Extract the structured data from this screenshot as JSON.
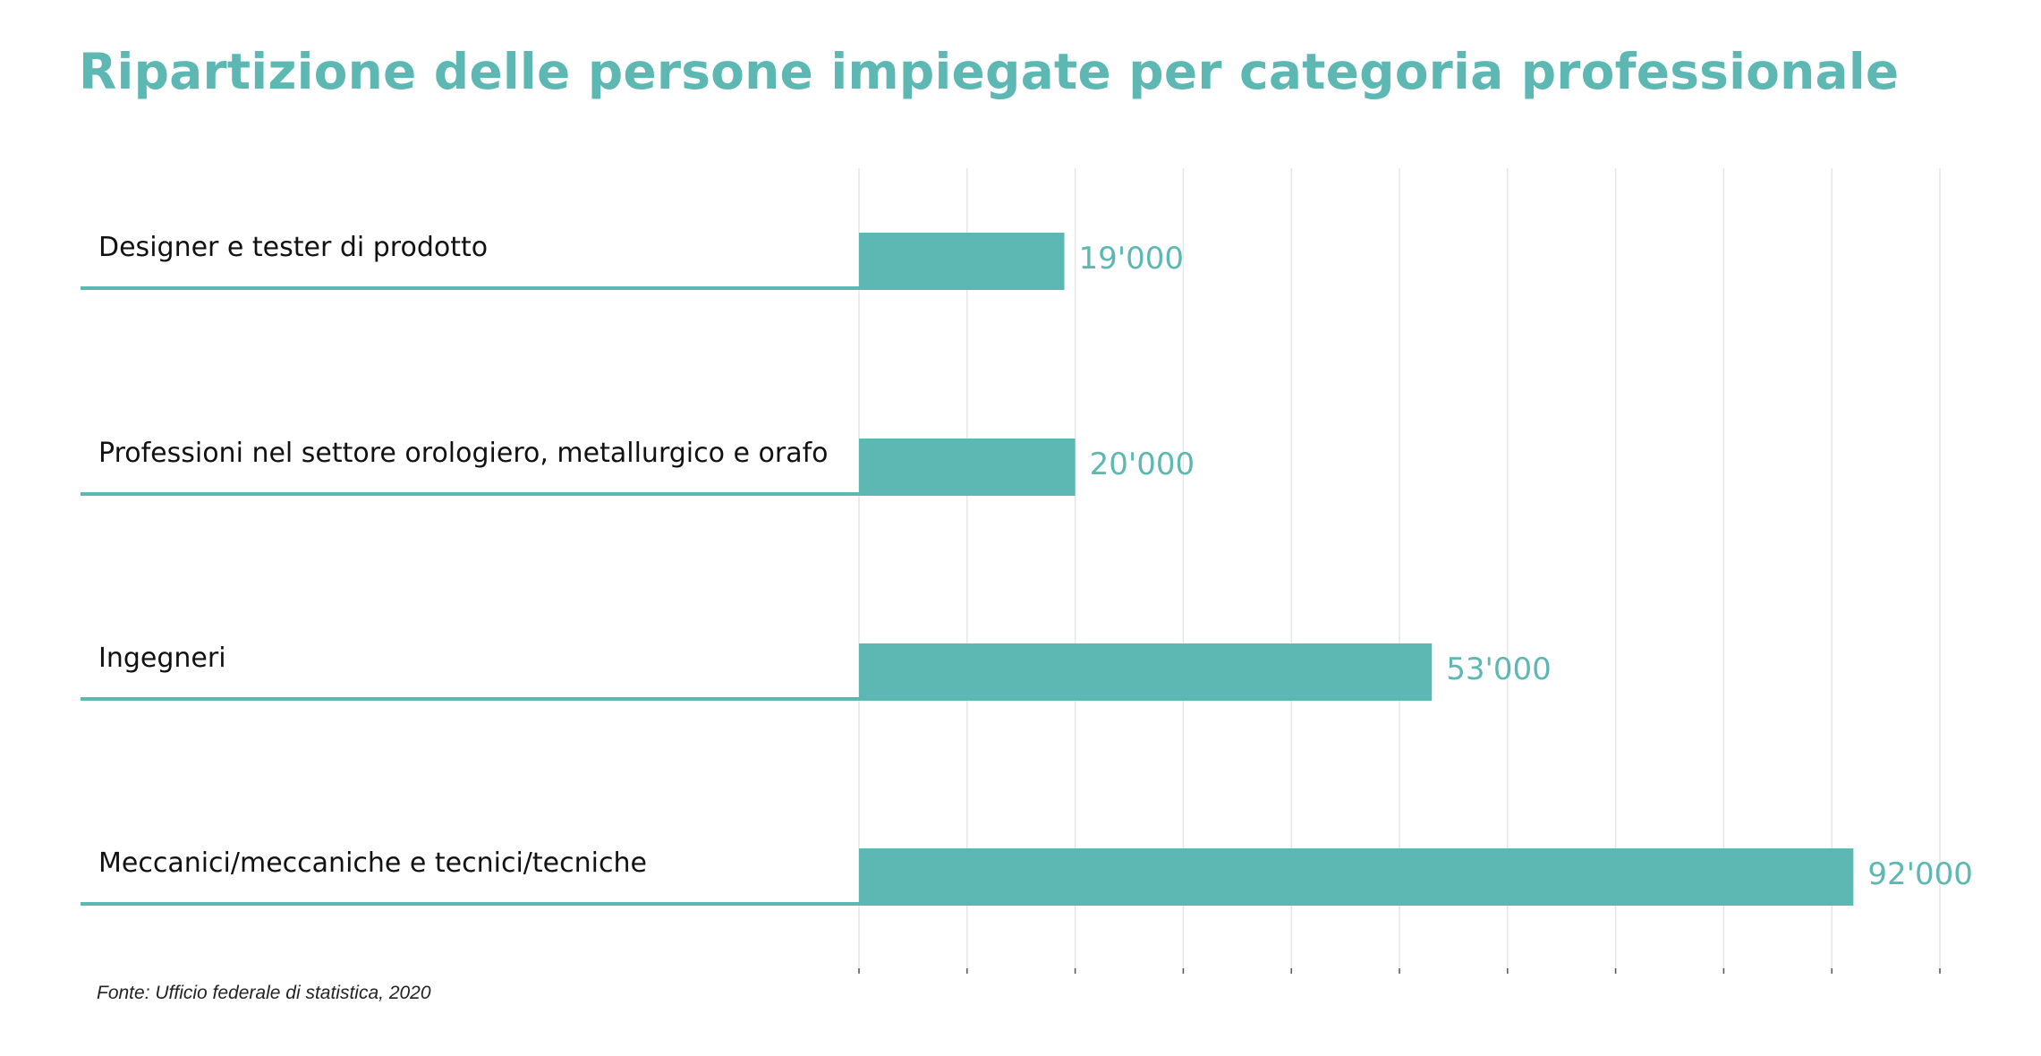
{
  "colors": {
    "accent": "#5db8b3",
    "title": "#5db8b3",
    "grid": "#e6e6e6",
    "label_text": "#111111",
    "value_text": "#5db8b3"
  },
  "chart_data": {
    "type": "bar",
    "orientation": "horizontal",
    "title": "Ripartizione delle persone impiegate per categoria professionale",
    "categories": [
      "Designer e tester di prodotto",
      "Professioni nel settore orologiero, metallurgico e orafo",
      "Ingegneri",
      "Meccanici/meccaniche e tecnici/tecniche"
    ],
    "values": [
      19000,
      20000,
      53000,
      92000
    ],
    "value_labels": [
      "19'000",
      "20'000",
      "53'000",
      "92'000"
    ],
    "xlim": [
      0,
      100000
    ],
    "x_gridlines": [
      0,
      10000,
      20000,
      30000,
      40000,
      50000,
      60000,
      70000,
      80000,
      90000,
      100000
    ],
    "grid": true,
    "axis_tick_labels_shown": false,
    "xlabel": "",
    "ylabel": ""
  },
  "source": "Fonte: Ufficio federale di statistica, 2020"
}
